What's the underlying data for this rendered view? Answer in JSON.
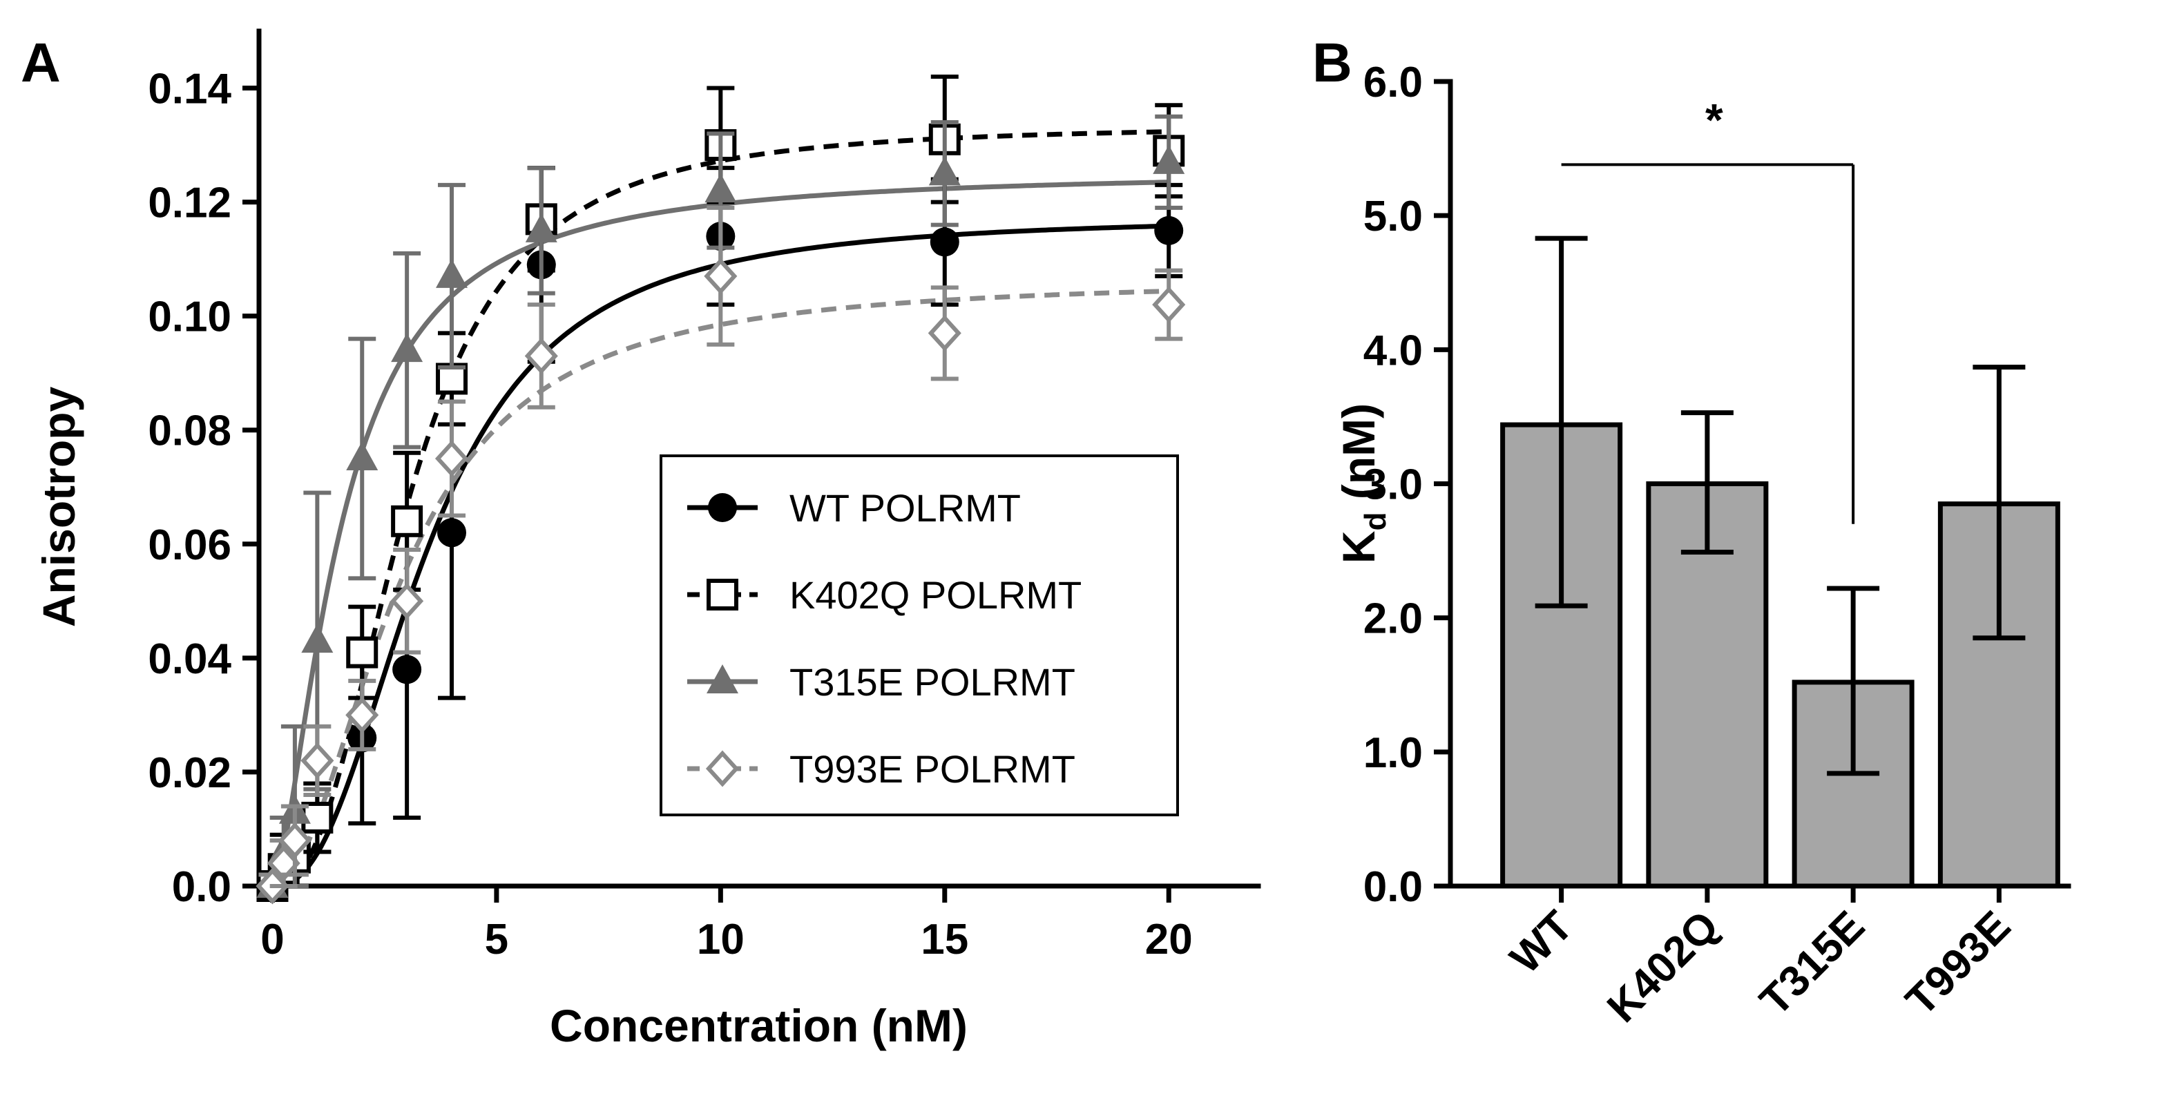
{
  "chart_data": [
    {
      "panel": "A",
      "type": "scatter",
      "title": "",
      "xlabel": "Concentration (nM)",
      "ylabel": "Anisotropy",
      "xlim": [
        -0.3,
        22
      ],
      "ylim": [
        0,
        0.15
      ],
      "xticks": [
        0,
        5,
        10,
        15,
        20
      ],
      "xtick_labels": [
        "0",
        "5",
        "10",
        "15",
        "20"
      ],
      "yticks": [
        0,
        0.02,
        0.04,
        0.06,
        0.08,
        0.1,
        0.12,
        0.14
      ],
      "ytick_labels": [
        "0.0",
        "0.02",
        "0.04",
        "0.06",
        "0.08",
        "0.10",
        "0.12",
        "0.14"
      ],
      "legend_position": "center-right",
      "fit_curves": true,
      "series": [
        {
          "name": "WT POLRMT",
          "color": "#000000",
          "marker": "circle-filled",
          "line": "solid",
          "x": [
            0,
            0.25,
            0.5,
            1,
            2,
            3,
            4,
            6,
            10,
            15,
            20
          ],
          "y": [
            0.0,
            0.002,
            0.004,
            0.012,
            0.026,
            0.038,
            0.062,
            0.109,
            0.114,
            0.113,
            0.115
          ],
          "err": [
            0.002,
            0.003,
            0.004,
            0.006,
            0.015,
            0.026,
            0.029,
            0.017,
            0.012,
            0.011,
            0.008
          ],
          "fit": {
            "top": 0.1175,
            "kd": 3.44,
            "hill": 2.4
          }
        },
        {
          "name": "K402Q POLRMT",
          "color": "#000000",
          "marker": "square-open",
          "line": "dashed",
          "x": [
            0,
            0.25,
            0.5,
            1,
            2,
            3,
            4,
            6,
            10,
            15,
            20
          ],
          "y": [
            0.0,
            0.003,
            0.005,
            0.012,
            0.041,
            0.064,
            0.089,
            0.117,
            0.13,
            0.131,
            0.129
          ],
          "err": [
            0.002,
            0.006,
            0.007,
            0.006,
            0.008,
            0.012,
            0.008,
            0.009,
            0.01,
            0.011,
            0.008
          ],
          "fit": {
            "top": 0.1335,
            "kd": 3.0,
            "hill": 2.5
          }
        },
        {
          "name": "T315E POLRMT",
          "color": "#6f6f6f",
          "marker": "triangle-filled",
          "line": "solid",
          "x": [
            0,
            0.25,
            0.5,
            1,
            2,
            3,
            4,
            6,
            10,
            15,
            20
          ],
          "y": [
            0.0,
            0.006,
            0.013,
            0.043,
            0.075,
            0.094,
            0.107,
            0.115,
            0.122,
            0.125,
            0.127
          ],
          "err": [
            0.002,
            0.006,
            0.015,
            0.026,
            0.021,
            0.017,
            0.016,
            0.011,
            0.01,
            0.009,
            0.008
          ],
          "fit": {
            "top": 0.1255,
            "kd": 1.52,
            "hill": 1.6
          }
        },
        {
          "name": "T993E POLRMT",
          "color": "#8a8a8a",
          "marker": "diamond-open",
          "line": "dashed",
          "x": [
            0,
            0.25,
            0.5,
            1,
            2,
            3,
            4,
            6,
            10,
            15,
            20
          ],
          "y": [
            0.0,
            0.004,
            0.008,
            0.022,
            0.03,
            0.05,
            0.075,
            0.093,
            0.107,
            0.097,
            0.102
          ],
          "err": [
            0.002,
            0.004,
            0.006,
            0.006,
            0.006,
            0.009,
            0.01,
            0.009,
            0.012,
            0.008,
            0.006
          ],
          "fit": {
            "top": 0.1065,
            "kd": 2.85,
            "hill": 2.0
          }
        }
      ]
    },
    {
      "panel": "B",
      "type": "bar",
      "title": "",
      "xlabel": "",
      "ylabel_main": "K",
      "ylabel_sub": "d",
      "ylabel_tail": " (nM)",
      "ylim": [
        0,
        6
      ],
      "yticks": [
        0,
        1,
        2,
        3,
        4,
        5,
        6
      ],
      "ytick_labels": [
        "0.0",
        "1.0",
        "2.0",
        "3.0",
        "4.0",
        "5.0",
        "6.0"
      ],
      "bar_color": "#a6a6a6",
      "categories": [
        "WT",
        "K402Q",
        "T315E",
        "T993E"
      ],
      "values": [
        3.44,
        3.0,
        1.52,
        2.85
      ],
      "err_high": [
        4.83,
        3.53,
        2.22,
        3.87
      ],
      "err_low": [
        2.09,
        2.49,
        0.84,
        1.85
      ],
      "significance": {
        "from": "WT",
        "to": "T315E",
        "label": "*"
      }
    }
  ]
}
